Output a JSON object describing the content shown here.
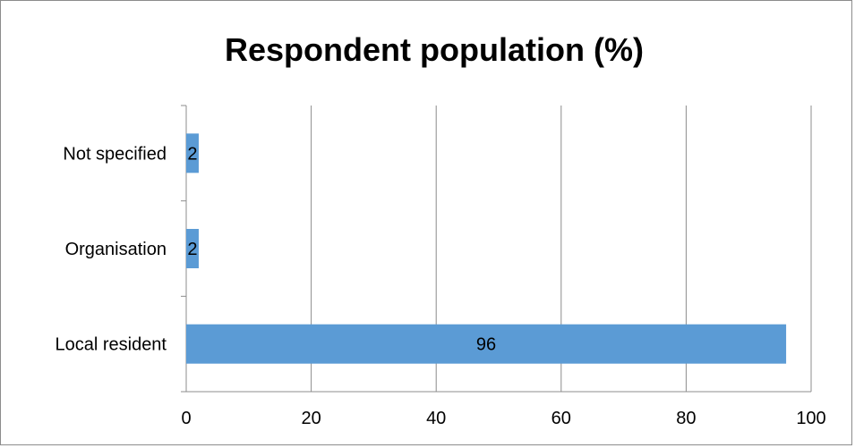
{
  "chart_data": {
    "type": "bar",
    "orientation": "horizontal",
    "title": "Respondent population (%)",
    "xlabel": "",
    "ylabel": "",
    "categories": [
      "Local resident",
      "Organisation",
      "Not specified"
    ],
    "values": [
      96,
      2,
      2
    ],
    "data_labels": [
      "96",
      "2",
      "2"
    ],
    "xlim": [
      0,
      100
    ],
    "x_ticks": [
      "0",
      "20",
      "40",
      "60",
      "80",
      "100"
    ],
    "grid": "vertical",
    "legend": "none",
    "bar_color": "#5b9bd5",
    "grid_color": "#8c8c8c"
  }
}
